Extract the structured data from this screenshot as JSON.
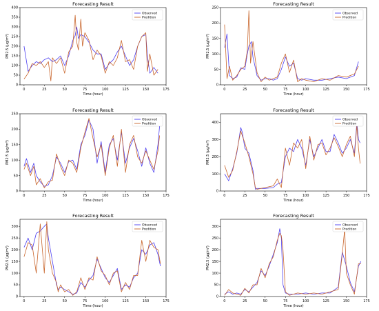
{
  "figure": {
    "colors": {
      "observed": "#4b3df0",
      "prediction": "#c8642a",
      "axes": "#000000"
    }
  },
  "chart_data": [
    {
      "type": "line",
      "title": "Forecasting Result",
      "xlabel": "Time (hour)",
      "ylabel": "PM2.5 (μg/m³)",
      "xlim": [
        -5,
        175
      ],
      "ylim": [
        0,
        400
      ],
      "xticks": [
        0,
        25,
        50,
        75,
        100,
        125,
        150,
        175
      ],
      "yticks": [
        0,
        50,
        100,
        150,
        200,
        250,
        300,
        350,
        400
      ],
      "legend": "top-right",
      "series": [
        {
          "name": "Observed",
          "color": "#4b3df0",
          "x": [
            0,
            5,
            10,
            15,
            20,
            25,
            30,
            35,
            40,
            45,
            50,
            55,
            60,
            63,
            65,
            67,
            70,
            75,
            80,
            85,
            90,
            95,
            100,
            105,
            110,
            115,
            120,
            125,
            130,
            135,
            140,
            145,
            150,
            152,
            155,
            160,
            165
          ],
          "y": [
            200,
            70,
            100,
            120,
            110,
            130,
            140,
            120,
            130,
            150,
            100,
            150,
            230,
            255,
            300,
            240,
            260,
            250,
            220,
            180,
            160,
            160,
            80,
            110,
            130,
            170,
            200,
            150,
            100,
            130,
            200,
            250,
            260,
            150,
            60,
            90,
            60
          ]
        },
        {
          "name": "Predition",
          "color": "#c8642a",
          "x": [
            0,
            5,
            10,
            15,
            20,
            25,
            30,
            33,
            35,
            40,
            45,
            50,
            55,
            60,
            63,
            65,
            67,
            70,
            72,
            75,
            80,
            85,
            90,
            95,
            100,
            105,
            110,
            115,
            120,
            125,
            130,
            135,
            140,
            145,
            150,
            152,
            155,
            160,
            165
          ],
          "y": [
            30,
            60,
            110,
            100,
            120,
            90,
            120,
            20,
            140,
            110,
            140,
            60,
            170,
            200,
            360,
            220,
            180,
            340,
            200,
            270,
            230,
            130,
            180,
            150,
            60,
            120,
            100,
            140,
            230,
            120,
            130,
            80,
            200,
            250,
            270,
            70,
            160,
            50,
            80
          ]
        }
      ]
    },
    {
      "type": "line",
      "title": "Forecasting Result",
      "xlabel": "Time (hour)",
      "ylabel": "PM2.5 (μg/m³)",
      "xlim": [
        -5,
        175
      ],
      "ylim": [
        0,
        250
      ],
      "xticks": [
        0,
        25,
        50,
        75,
        100,
        125,
        150,
        175
      ],
      "yticks": [
        0,
        50,
        100,
        150,
        200,
        250
      ],
      "legend": "top-right",
      "series": [
        {
          "name": "Observed",
          "color": "#4b3df0",
          "x": [
            0,
            3,
            6,
            10,
            15,
            20,
            25,
            28,
            30,
            33,
            35,
            40,
            45,
            50,
            55,
            60,
            65,
            70,
            75,
            80,
            85,
            90,
            95,
            100,
            110,
            120,
            130,
            140,
            150,
            160,
            165
          ],
          "y": [
            120,
            165,
            30,
            20,
            25,
            55,
            50,
            100,
            125,
            140,
            90,
            30,
            15,
            20,
            20,
            15,
            20,
            50,
            90,
            60,
            70,
            20,
            15,
            20,
            15,
            15,
            20,
            25,
            20,
            30,
            75
          ]
        },
        {
          "name": "Predition",
          "color": "#c8642a",
          "x": [
            0,
            3,
            6,
            10,
            15,
            20,
            25,
            28,
            30,
            32,
            35,
            40,
            45,
            50,
            55,
            60,
            65,
            70,
            75,
            80,
            85,
            90,
            95,
            100,
            110,
            120,
            130,
            140,
            150,
            160,
            165
          ],
          "y": [
            195,
            20,
            60,
            15,
            30,
            50,
            60,
            110,
            240,
            70,
            140,
            40,
            10,
            25,
            15,
            20,
            25,
            70,
            100,
            40,
            80,
            10,
            20,
            15,
            10,
            20,
            15,
            30,
            25,
            35,
            60
          ]
        }
      ]
    },
    {
      "type": "line",
      "title": "Forecasting Result",
      "xlabel": "Time (hour)",
      "ylabel": "PM2.5 (μg/m³)",
      "xlim": [
        -5,
        175
      ],
      "ylim": [
        0,
        250
      ],
      "xticks": [
        0,
        25,
        50,
        75,
        100,
        125,
        150,
        175
      ],
      "yticks": [
        0,
        50,
        100,
        150,
        200,
        250
      ],
      "legend": "top-right",
      "series": [
        {
          "name": "Observed",
          "color": "#4b3df0",
          "x": [
            0,
            3,
            8,
            12,
            15,
            20,
            25,
            30,
            35,
            40,
            45,
            50,
            55,
            60,
            65,
            70,
            75,
            80,
            85,
            90,
            95,
            100,
            105,
            110,
            115,
            120,
            125,
            130,
            135,
            140,
            145,
            150,
            155,
            160,
            165,
            167
          ],
          "y": [
            80,
            105,
            60,
            90,
            50,
            30,
            15,
            20,
            50,
            110,
            90,
            60,
            95,
            100,
            70,
            150,
            180,
            230,
            200,
            90,
            160,
            60,
            150,
            170,
            100,
            190,
            90,
            140,
            170,
            130,
            80,
            140,
            90,
            60,
            150,
            210
          ]
        },
        {
          "name": "Predition",
          "color": "#c8642a",
          "x": [
            0,
            3,
            8,
            12,
            15,
            20,
            25,
            30,
            35,
            40,
            45,
            50,
            55,
            60,
            65,
            70,
            75,
            80,
            85,
            90,
            95,
            100,
            105,
            110,
            115,
            120,
            125,
            130,
            135,
            140,
            145,
            150,
            155,
            160,
            165,
            167
          ],
          "y": [
            70,
            90,
            50,
            80,
            20,
            40,
            10,
            30,
            35,
            120,
            80,
            50,
            100,
            90,
            60,
            140,
            190,
            235,
            170,
            110,
            150,
            50,
            140,
            180,
            80,
            200,
            60,
            150,
            180,
            110,
            90,
            130,
            100,
            70,
            130,
            180
          ]
        }
      ]
    },
    {
      "type": "line",
      "title": "Forecasting Result",
      "xlabel": "Time (hour)",
      "ylabel": "PM2.5 (μg/m³)",
      "xlim": [
        -5,
        175
      ],
      "ylim": [
        0,
        450
      ],
      "xticks": [
        0,
        25,
        50,
        75,
        100,
        125,
        150,
        175
      ],
      "yticks": [
        0,
        100,
        200,
        300,
        400
      ],
      "legend": "top-right",
      "series": [
        {
          "name": "Observed",
          "color": "#4b3df0",
          "x": [
            0,
            5,
            10,
            15,
            20,
            22,
            25,
            30,
            35,
            38,
            40,
            50,
            60,
            65,
            70,
            75,
            80,
            85,
            90,
            95,
            100,
            105,
            110,
            115,
            120,
            125,
            130,
            135,
            140,
            145,
            150,
            155,
            160,
            163,
            165,
            167
          ],
          "y": [
            100,
            60,
            130,
            220,
            370,
            340,
            250,
            220,
            120,
            10,
            15,
            15,
            20,
            40,
            50,
            200,
            250,
            230,
            300,
            250,
            150,
            300,
            200,
            250,
            300,
            230,
            230,
            330,
            280,
            220,
            250,
            300,
            220,
            400,
            300,
            280
          ]
        },
        {
          "name": "Predition",
          "color": "#c8642a",
          "x": [
            0,
            5,
            10,
            15,
            20,
            22,
            25,
            30,
            35,
            38,
            40,
            50,
            60,
            65,
            70,
            75,
            80,
            85,
            90,
            95,
            100,
            105,
            110,
            115,
            120,
            125,
            130,
            135,
            140,
            145,
            150,
            155,
            160,
            163,
            165,
            167
          ],
          "y": [
            150,
            80,
            120,
            230,
            350,
            320,
            280,
            200,
            100,
            20,
            10,
            20,
            30,
            70,
            20,
            250,
            150,
            280,
            250,
            300,
            130,
            320,
            180,
            270,
            280,
            210,
            250,
            310,
            260,
            200,
            270,
            320,
            200,
            380,
            250,
            160
          ]
        }
      ]
    },
    {
      "type": "line",
      "title": "Forecasting Result",
      "xlabel": "Time (hour)",
      "ylabel": "PM2.5 (μg/m³)",
      "xlim": [
        -5,
        175
      ],
      "ylim": [
        0,
        330
      ],
      "xticks": [
        0,
        25,
        50,
        75,
        100,
        125,
        150,
        175
      ],
      "yticks": [
        0,
        50,
        100,
        150,
        200,
        250,
        300
      ],
      "legend": "top-right",
      "series": [
        {
          "name": "Observed",
          "color": "#4b3df0",
          "x": [
            0,
            5,
            10,
            15,
            20,
            25,
            28,
            30,
            35,
            40,
            42,
            45,
            50,
            55,
            60,
            65,
            70,
            75,
            80,
            85,
            90,
            95,
            100,
            105,
            110,
            115,
            120,
            125,
            130,
            135,
            140,
            145,
            150,
            155,
            160,
            165,
            168
          ],
          "y": [
            210,
            250,
            200,
            270,
            280,
            300,
            310,
            250,
            150,
            50,
            30,
            40,
            30,
            20,
            10,
            15,
            60,
            40,
            70,
            90,
            160,
            120,
            80,
            60,
            90,
            120,
            30,
            50,
            40,
            80,
            100,
            200,
            180,
            220,
            230,
            180,
            130
          ]
        },
        {
          "name": "Predition",
          "color": "#c8642a",
          "x": [
            0,
            5,
            10,
            15,
            20,
            25,
            28,
            30,
            35,
            40,
            42,
            45,
            50,
            55,
            60,
            65,
            70,
            75,
            80,
            85,
            90,
            95,
            100,
            105,
            110,
            115,
            120,
            125,
            130,
            135,
            140,
            145,
            150,
            155,
            160,
            165,
            168
          ],
          "y": [
            170,
            230,
            220,
            100,
            310,
            100,
            320,
            200,
            100,
            60,
            20,
            50,
            20,
            30,
            5,
            20,
            80,
            30,
            80,
            70,
            170,
            110,
            90,
            50,
            100,
            110,
            20,
            60,
            30,
            90,
            90,
            240,
            150,
            240,
            210,
            200,
            140
          ]
        }
      ]
    },
    {
      "type": "line",
      "title": "Forecasting Result",
      "xlabel": "Time (hour)",
      "ylabel": "PM2.5 (μg/m³)",
      "xlim": [
        -5,
        175
      ],
      "ylim": [
        0,
        330
      ],
      "xticks": [
        0,
        25,
        50,
        75,
        100,
        125,
        150,
        175
      ],
      "yticks": [
        0,
        50,
        100,
        150,
        200,
        250,
        300
      ],
      "legend": "top-right",
      "series": [
        {
          "name": "Observed",
          "color": "#4b3df0",
          "x": [
            0,
            5,
            10,
            15,
            20,
            25,
            30,
            35,
            40,
            45,
            50,
            55,
            60,
            65,
            68,
            70,
            72,
            75,
            80,
            90,
            100,
            110,
            120,
            130,
            140,
            145,
            150,
            155,
            160,
            165,
            168
          ],
          "y": [
            10,
            20,
            10,
            15,
            10,
            30,
            20,
            40,
            60,
            110,
            90,
            130,
            180,
            230,
            290,
            250,
            50,
            15,
            10,
            10,
            15,
            10,
            15,
            15,
            40,
            190,
            130,
            60,
            20,
            130,
            150
          ]
        },
        {
          "name": "Predition",
          "color": "#c8642a",
          "x": [
            0,
            5,
            10,
            15,
            20,
            25,
            30,
            35,
            40,
            45,
            50,
            55,
            60,
            65,
            68,
            70,
            72,
            75,
            80,
            90,
            100,
            110,
            120,
            130,
            140,
            145,
            148,
            150,
            155,
            160,
            165,
            168
          ],
          "y": [
            5,
            30,
            15,
            10,
            5,
            35,
            15,
            50,
            50,
            120,
            80,
            140,
            170,
            240,
            270,
            260,
            200,
            20,
            5,
            15,
            10,
            15,
            10,
            20,
            30,
            180,
            290,
            100,
            50,
            10,
            140,
            140
          ]
        }
      ]
    }
  ]
}
